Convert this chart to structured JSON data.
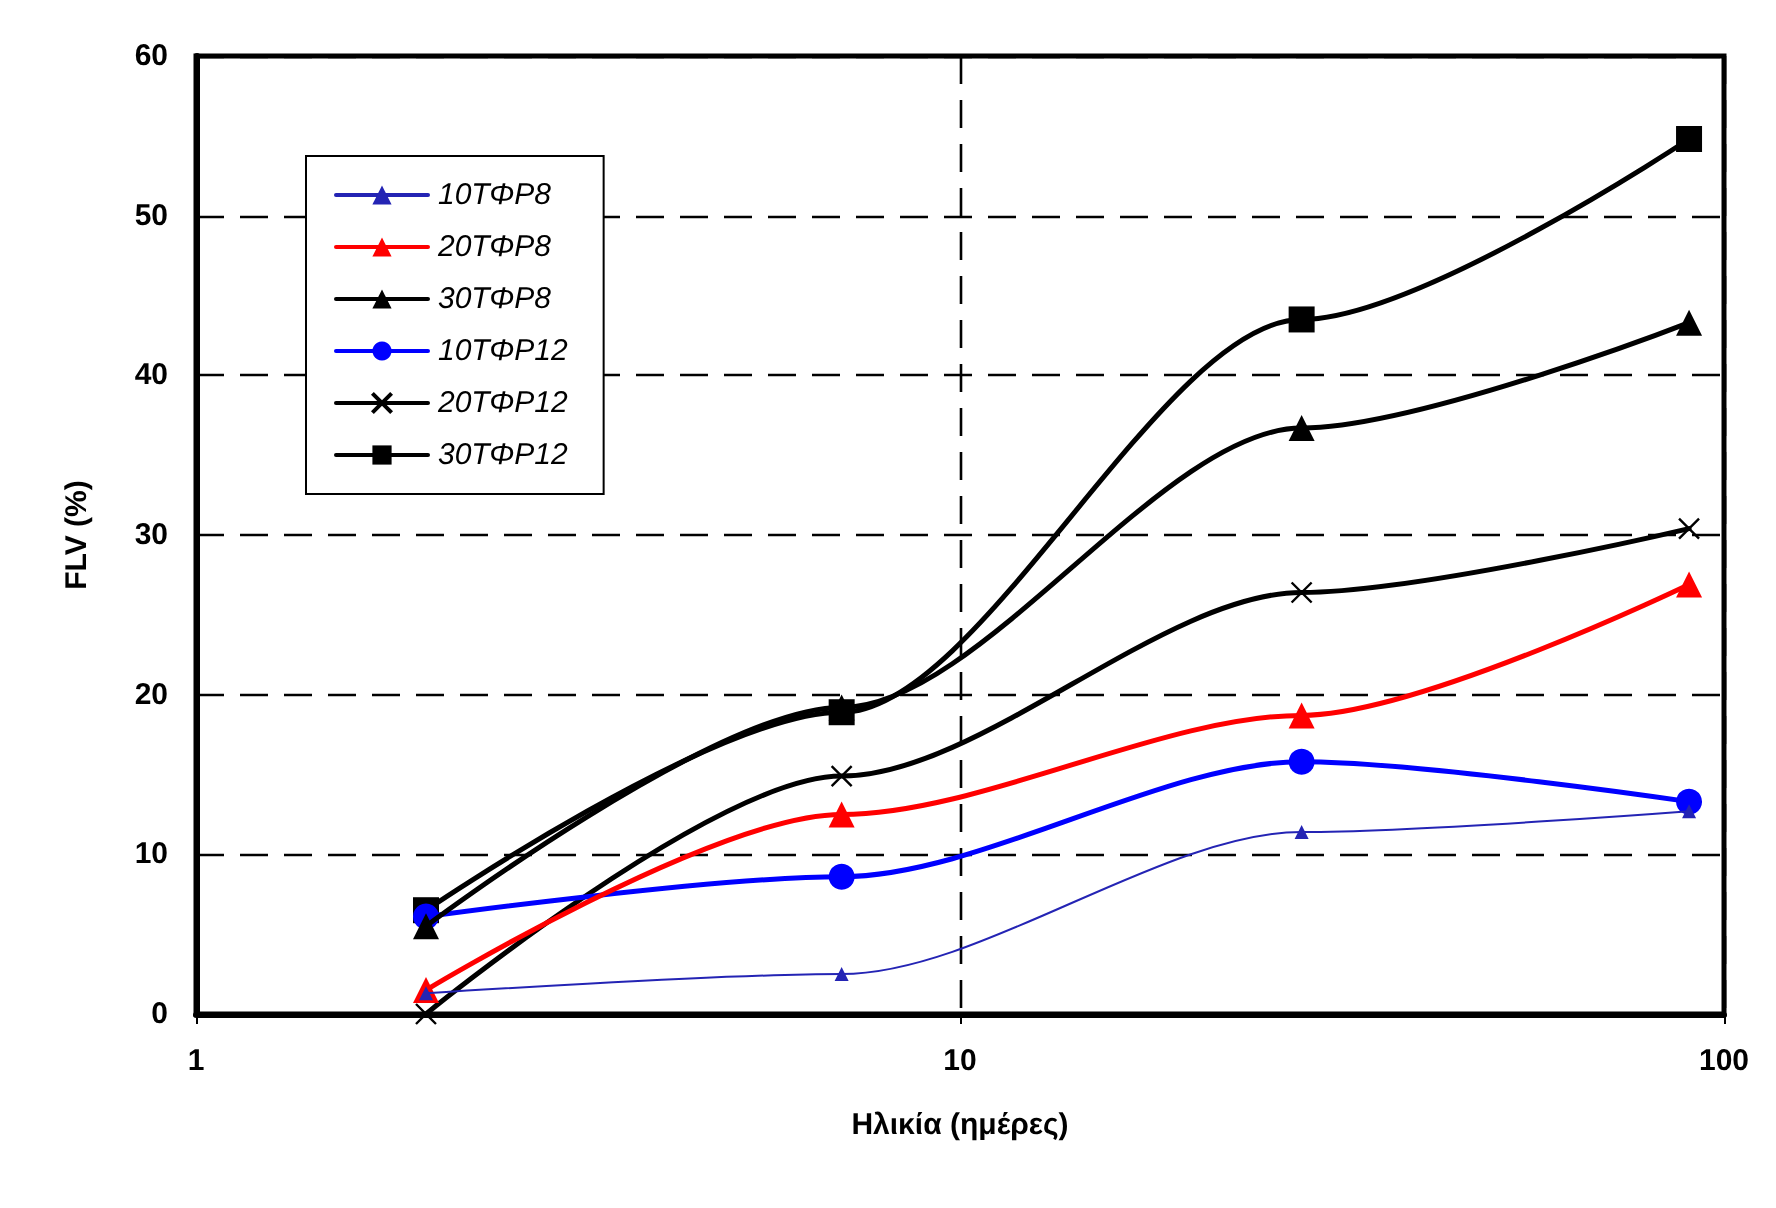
{
  "chart_data": {
    "type": "line",
    "xlabel": "Ηλικία (ημέρες)",
    "ylabel": "FLV (%)",
    "x": [
      2,
      7,
      28,
      90
    ],
    "xlim": [
      1,
      100
    ],
    "xticks": [
      1,
      10,
      100
    ],
    "ylim": [
      0,
      60
    ],
    "yticks": [
      0,
      10,
      20,
      30,
      40,
      50,
      60
    ],
    "log": "x",
    "grid": true,
    "legend": "top left",
    "line_style": "solid",
    "series": [
      {
        "name": "10ΤΦΡ8",
        "color": "#2424b4",
        "marker": "triangle",
        "values": [
          1.3,
          2.5,
          11.4,
          12.7
        ]
      },
      {
        "name": "20ΤΦΡ8",
        "color": "#ff0000",
        "marker": "triangle",
        "values": [
          1.5,
          12.5,
          18.7,
          26.9
        ]
      },
      {
        "name": "30ΤΦΡ8",
        "color": "#000000",
        "marker": "triangle",
        "values": [
          5.5,
          19.2,
          36.7,
          43.3
        ]
      },
      {
        "name": "10ΤΦΡ12",
        "color": "#0000ff",
        "marker": "circle",
        "values": [
          6.1,
          8.6,
          15.8,
          13.3
        ]
      },
      {
        "name": "20ΤΦΡ12",
        "color": "#000000",
        "marker": "cross",
        "values": [
          0,
          14.9,
          26.4,
          30.4
        ]
      },
      {
        "name": "30ΤΦΡ12",
        "color": "#000000",
        "marker": "square",
        "values": [
          6.5,
          18.9,
          43.5,
          54.8
        ]
      }
    ]
  }
}
